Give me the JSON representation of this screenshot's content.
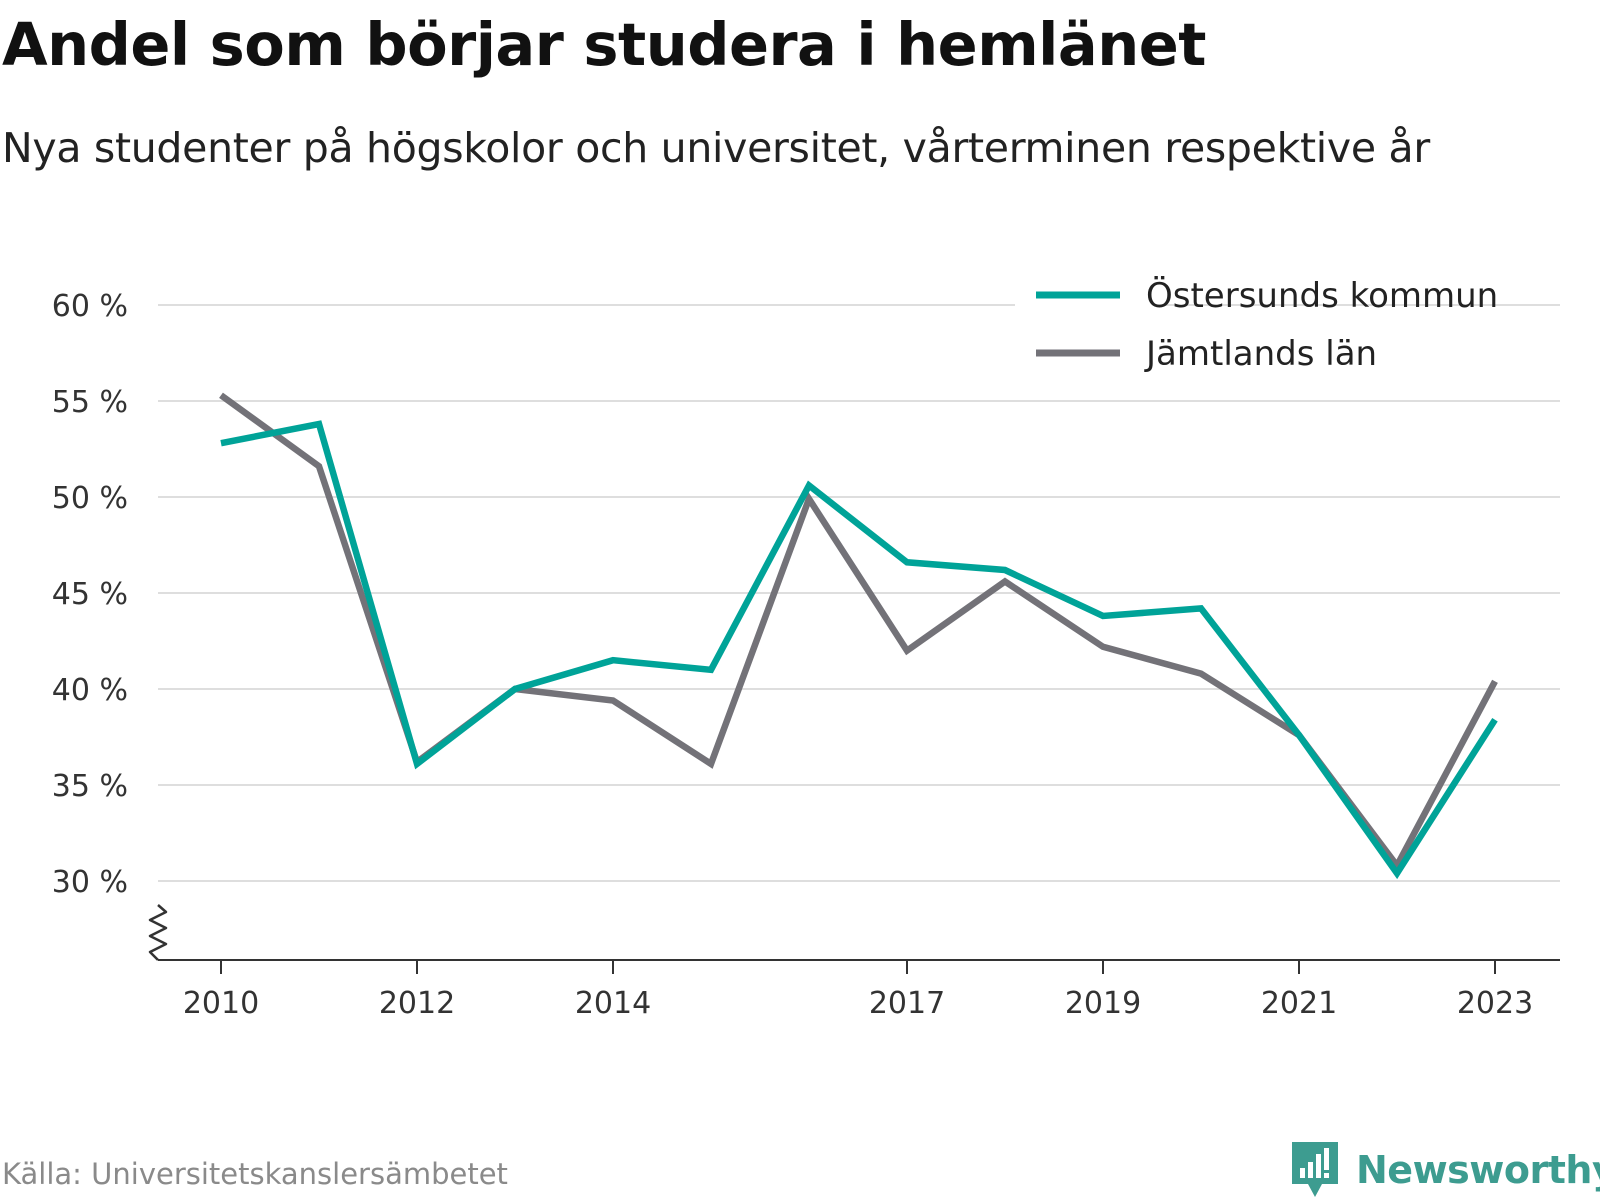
{
  "title": "Andel som börjar studera i hemlänet",
  "subtitle": "Nya studenter på högskolor och universitet, vårterminen respektive år",
  "source": "Källa: Universitetskanslersämbetet",
  "brand": {
    "name": "Newsworthy",
    "color": "#3d9c90",
    "icon": "newsworthy-logo-icon"
  },
  "chart_data": {
    "type": "line",
    "x": [
      2010,
      2011,
      2012,
      2013,
      2014,
      2015,
      2016,
      2017,
      2018,
      2019,
      2020,
      2021,
      2022,
      2023
    ],
    "x_tick_labels": [
      "2010",
      "2012",
      "2014",
      "2017",
      "2019",
      "2021",
      "2023"
    ],
    "y_tick_labels": [
      "30 %",
      "35 %",
      "40 %",
      "45 %",
      "50 %",
      "55 %",
      "60 %"
    ],
    "y_ticks": [
      30,
      35,
      40,
      45,
      50,
      55,
      60
    ],
    "ylim": [
      26,
      62
    ],
    "y_axis_break": true,
    "grid": true,
    "legend_position": "top-right",
    "series": [
      {
        "name": "Östersunds kommun",
        "color": "#00a398",
        "values": [
          52.8,
          53.8,
          36.1,
          40.0,
          41.5,
          41.0,
          50.6,
          46.6,
          46.2,
          43.8,
          44.2,
          37.6,
          30.4,
          38.4
        ]
      },
      {
        "name": "Jämtlands län",
        "color": "#737278",
        "values": [
          55.3,
          51.6,
          36.2,
          40.0,
          39.4,
          36.1,
          49.9,
          42.0,
          45.6,
          42.2,
          40.8,
          37.6,
          30.8,
          40.4
        ]
      }
    ]
  }
}
